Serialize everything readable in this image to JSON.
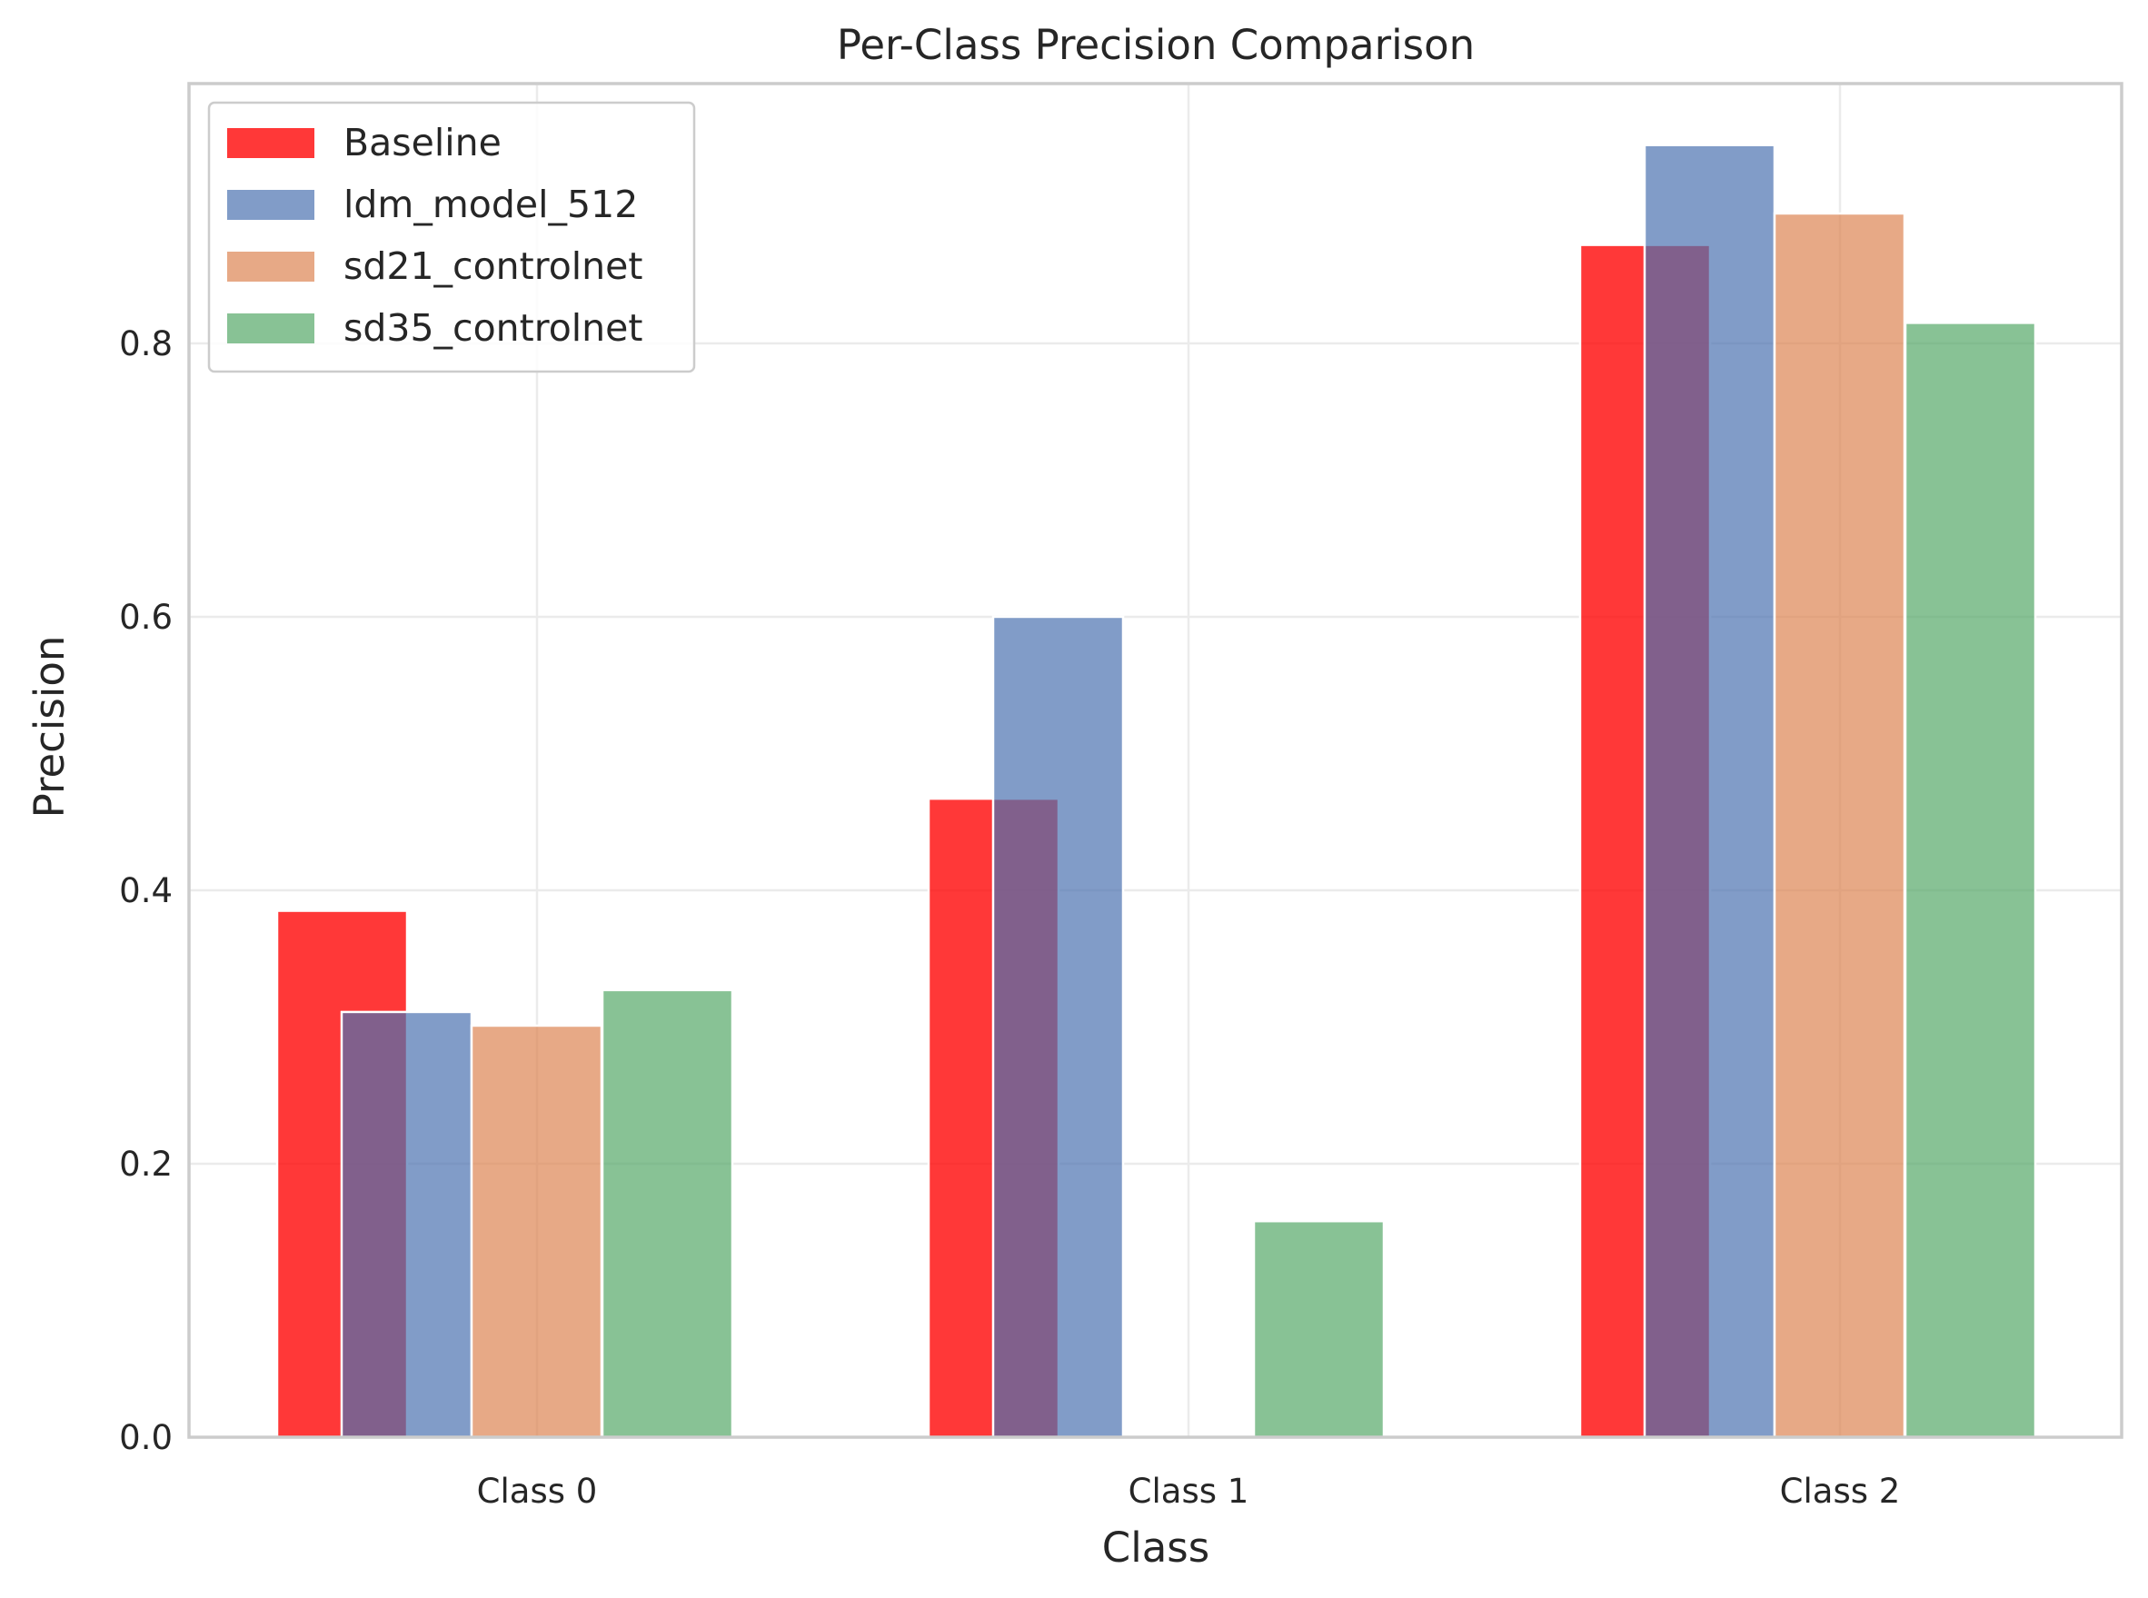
{
  "chart_data": {
    "type": "bar",
    "title": "Per-Class Precision Comparison",
    "xlabel": "Class",
    "ylabel": "Precision",
    "categories": [
      "Class 0",
      "Class 1",
      "Class 2"
    ],
    "ylim": [
      0,
      0.99
    ],
    "yticks": [
      0.0,
      0.2,
      0.4,
      0.6,
      0.8
    ],
    "ytick_labels": [
      "0.0",
      "0.2",
      "0.4",
      "0.6",
      "0.8"
    ],
    "grid": true,
    "legend_position": "top-left",
    "series": [
      {
        "name": "Baseline",
        "values": [
          0.385,
          0.467,
          0.872
        ],
        "color": "#ff0000",
        "opacity": 0.78
      },
      {
        "name": "ldm_model_512",
        "values": [
          0.311,
          0.6,
          0.945
        ],
        "color": "#4c72b0",
        "opacity": 0.7
      },
      {
        "name": "sd21_controlnet",
        "values": [
          0.301,
          0.0,
          0.895
        ],
        "color": "#dd8452",
        "opacity": 0.7
      },
      {
        "name": "sd35_controlnet",
        "values": [
          0.327,
          0.158,
          0.815
        ],
        "color": "#55a868",
        "opacity": 0.7
      }
    ]
  }
}
